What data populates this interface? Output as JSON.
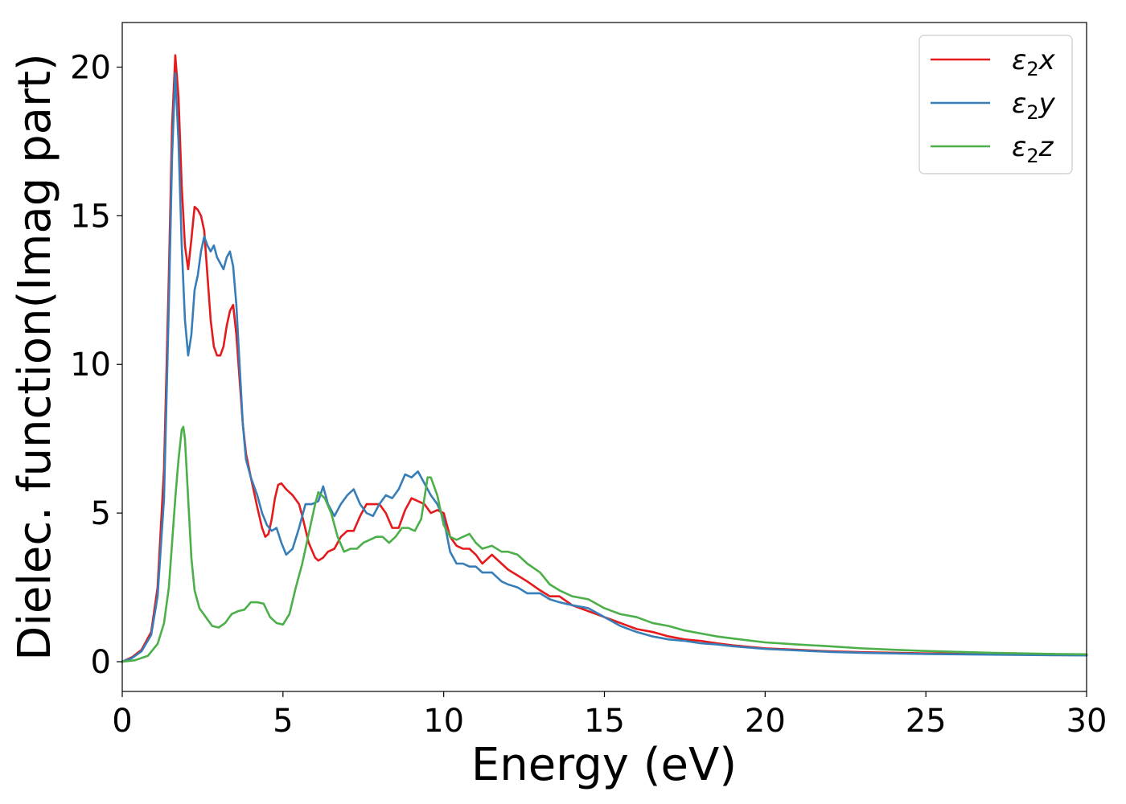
{
  "chart_data": {
    "type": "line",
    "xlabel": "Energy (eV)",
    "ylabel": "Dielec. function(Imag part)",
    "xlim": [
      0,
      30
    ],
    "ylim": [
      -1.0,
      21.5
    ],
    "xticks": [
      0,
      5,
      10,
      15,
      20,
      25,
      30
    ],
    "yticks": [
      0,
      5,
      10,
      15,
      20
    ],
    "xtick_labels": [
      "0",
      "5",
      "10",
      "15",
      "20",
      "25",
      "30"
    ],
    "ytick_labels": [
      "0",
      "5",
      "10",
      "15",
      "20"
    ],
    "grid": false,
    "legend_position": "top-right",
    "series": [
      {
        "name": "ε2x",
        "legend_base": "ε",
        "legend_sub": "2",
        "legend_var": "x",
        "color": "#e41a1c",
        "points": [
          [
            0,
            0
          ],
          [
            0.3,
            0.15
          ],
          [
            0.6,
            0.4
          ],
          [
            0.9,
            1.0
          ],
          [
            1.1,
            2.5
          ],
          [
            1.3,
            6.5
          ],
          [
            1.45,
            13.0
          ],
          [
            1.55,
            18.0
          ],
          [
            1.65,
            20.4
          ],
          [
            1.75,
            19.0
          ],
          [
            1.85,
            16.0
          ],
          [
            1.95,
            14.0
          ],
          [
            2.05,
            13.2
          ],
          [
            2.15,
            14.2
          ],
          [
            2.25,
            15.3
          ],
          [
            2.35,
            15.2
          ],
          [
            2.45,
            15.0
          ],
          [
            2.55,
            14.5
          ],
          [
            2.65,
            13.0
          ],
          [
            2.75,
            11.5
          ],
          [
            2.85,
            10.6
          ],
          [
            2.95,
            10.3
          ],
          [
            3.05,
            10.3
          ],
          [
            3.15,
            10.6
          ],
          [
            3.25,
            11.3
          ],
          [
            3.35,
            11.8
          ],
          [
            3.45,
            12.0
          ],
          [
            3.55,
            11.0
          ],
          [
            3.65,
            9.5
          ],
          [
            3.75,
            8.0
          ],
          [
            3.85,
            7.0
          ],
          [
            4.0,
            6.2
          ],
          [
            4.2,
            5.2
          ],
          [
            4.35,
            4.5
          ],
          [
            4.45,
            4.2
          ],
          [
            4.55,
            4.3
          ],
          [
            4.65,
            4.8
          ],
          [
            4.75,
            5.5
          ],
          [
            4.85,
            5.95
          ],
          [
            4.95,
            6.0
          ],
          [
            5.1,
            5.8
          ],
          [
            5.3,
            5.6
          ],
          [
            5.5,
            5.3
          ],
          [
            5.6,
            4.9
          ],
          [
            5.8,
            4.0
          ],
          [
            6.0,
            3.5
          ],
          [
            6.1,
            3.4
          ],
          [
            6.25,
            3.5
          ],
          [
            6.4,
            3.7
          ],
          [
            6.6,
            3.8
          ],
          [
            6.8,
            4.2
          ],
          [
            7.0,
            4.4
          ],
          [
            7.2,
            4.4
          ],
          [
            7.4,
            4.9
          ],
          [
            7.6,
            5.3
          ],
          [
            7.8,
            5.3
          ],
          [
            8.0,
            5.3
          ],
          [
            8.2,
            5.0
          ],
          [
            8.4,
            4.5
          ],
          [
            8.6,
            4.5
          ],
          [
            8.8,
            5.1
          ],
          [
            9.0,
            5.5
          ],
          [
            9.2,
            5.4
          ],
          [
            9.4,
            5.3
          ],
          [
            9.6,
            5.0
          ],
          [
            9.8,
            5.1
          ],
          [
            10.0,
            5.0
          ],
          [
            10.2,
            4.2
          ],
          [
            10.4,
            3.9
          ],
          [
            10.6,
            3.8
          ],
          [
            10.8,
            3.8
          ],
          [
            11.0,
            3.6
          ],
          [
            11.2,
            3.3
          ],
          [
            11.5,
            3.6
          ],
          [
            11.8,
            3.3
          ],
          [
            12.0,
            3.1
          ],
          [
            12.3,
            2.9
          ],
          [
            12.6,
            2.7
          ],
          [
            13.0,
            2.4
          ],
          [
            13.3,
            2.2
          ],
          [
            13.6,
            2.2
          ],
          [
            14.0,
            1.9
          ],
          [
            14.5,
            1.7
          ],
          [
            15.0,
            1.5
          ],
          [
            15.5,
            1.3
          ],
          [
            16.0,
            1.1
          ],
          [
            16.5,
            1.0
          ],
          [
            17.0,
            0.85
          ],
          [
            17.5,
            0.75
          ],
          [
            18.0,
            0.7
          ],
          [
            18.5,
            0.62
          ],
          [
            19.0,
            0.55
          ],
          [
            20.0,
            0.45
          ],
          [
            21.0,
            0.4
          ],
          [
            22.0,
            0.35
          ],
          [
            23.0,
            0.32
          ],
          [
            24.0,
            0.3
          ],
          [
            25.0,
            0.28
          ],
          [
            26.0,
            0.27
          ],
          [
            27.0,
            0.26
          ],
          [
            28.0,
            0.25
          ],
          [
            29.0,
            0.24
          ],
          [
            30.0,
            0.23
          ]
        ]
      },
      {
        "name": "ε2y",
        "legend_base": "ε",
        "legend_sub": "2",
        "legend_var": "y",
        "color": "#377eb8",
        "points": [
          [
            0,
            0
          ],
          [
            0.3,
            0.12
          ],
          [
            0.6,
            0.35
          ],
          [
            0.9,
            0.9
          ],
          [
            1.1,
            2.2
          ],
          [
            1.3,
            5.5
          ],
          [
            1.45,
            12.0
          ],
          [
            1.55,
            17.0
          ],
          [
            1.65,
            19.8
          ],
          [
            1.75,
            17.5
          ],
          [
            1.85,
            14.0
          ],
          [
            1.95,
            11.5
          ],
          [
            2.05,
            10.3
          ],
          [
            2.15,
            11.0
          ],
          [
            2.25,
            12.5
          ],
          [
            2.35,
            13.0
          ],
          [
            2.45,
            13.8
          ],
          [
            2.55,
            14.3
          ],
          [
            2.65,
            14.0
          ],
          [
            2.75,
            13.8
          ],
          [
            2.85,
            14.0
          ],
          [
            2.95,
            13.6
          ],
          [
            3.05,
            13.4
          ],
          [
            3.15,
            13.2
          ],
          [
            3.25,
            13.6
          ],
          [
            3.35,
            13.8
          ],
          [
            3.45,
            13.3
          ],
          [
            3.55,
            12.0
          ],
          [
            3.65,
            10.0
          ],
          [
            3.75,
            8.0
          ],
          [
            3.85,
            6.8
          ],
          [
            4.0,
            6.2
          ],
          [
            4.2,
            5.6
          ],
          [
            4.35,
            5.0
          ],
          [
            4.5,
            4.6
          ],
          [
            4.65,
            4.4
          ],
          [
            4.8,
            4.5
          ],
          [
            4.95,
            4.0
          ],
          [
            5.1,
            3.6
          ],
          [
            5.3,
            3.8
          ],
          [
            5.5,
            4.5
          ],
          [
            5.7,
            5.3
          ],
          [
            5.9,
            5.3
          ],
          [
            6.1,
            5.4
          ],
          [
            6.25,
            5.9
          ],
          [
            6.4,
            5.3
          ],
          [
            6.6,
            4.9
          ],
          [
            6.8,
            5.3
          ],
          [
            7.0,
            5.6
          ],
          [
            7.2,
            5.8
          ],
          [
            7.4,
            5.3
          ],
          [
            7.6,
            5.0
          ],
          [
            7.8,
            4.9
          ],
          [
            8.0,
            5.3
          ],
          [
            8.2,
            5.6
          ],
          [
            8.4,
            5.5
          ],
          [
            8.6,
            5.8
          ],
          [
            8.8,
            6.3
          ],
          [
            9.0,
            6.2
          ],
          [
            9.2,
            6.4
          ],
          [
            9.4,
            6.0
          ],
          [
            9.6,
            5.6
          ],
          [
            9.8,
            5.3
          ],
          [
            10.0,
            4.8
          ],
          [
            10.2,
            3.7
          ],
          [
            10.4,
            3.3
          ],
          [
            10.6,
            3.3
          ],
          [
            10.8,
            3.2
          ],
          [
            11.0,
            3.2
          ],
          [
            11.2,
            3.0
          ],
          [
            11.5,
            3.0
          ],
          [
            11.8,
            2.7
          ],
          [
            12.0,
            2.6
          ],
          [
            12.3,
            2.5
          ],
          [
            12.6,
            2.3
          ],
          [
            13.0,
            2.3
          ],
          [
            13.3,
            2.1
          ],
          [
            13.6,
            2.0
          ],
          [
            14.0,
            1.9
          ],
          [
            14.5,
            1.8
          ],
          [
            15.0,
            1.5
          ],
          [
            15.5,
            1.2
          ],
          [
            16.0,
            1.0
          ],
          [
            16.5,
            0.85
          ],
          [
            17.0,
            0.75
          ],
          [
            17.5,
            0.7
          ],
          [
            18.0,
            0.62
          ],
          [
            18.5,
            0.58
          ],
          [
            19.0,
            0.52
          ],
          [
            20.0,
            0.43
          ],
          [
            21.0,
            0.38
          ],
          [
            22.0,
            0.33
          ],
          [
            23.0,
            0.3
          ],
          [
            24.0,
            0.28
          ],
          [
            25.0,
            0.26
          ],
          [
            26.0,
            0.25
          ],
          [
            27.0,
            0.24
          ],
          [
            28.0,
            0.23
          ],
          [
            29.0,
            0.22
          ],
          [
            30.0,
            0.21
          ]
        ]
      },
      {
        "name": "ε2z",
        "legend_base": "ε",
        "legend_sub": "2",
        "legend_var": "z",
        "color": "#4daf4a",
        "points": [
          [
            0,
            0
          ],
          [
            0.4,
            0.05
          ],
          [
            0.8,
            0.2
          ],
          [
            1.1,
            0.6
          ],
          [
            1.3,
            1.3
          ],
          [
            1.45,
            2.5
          ],
          [
            1.55,
            4.0
          ],
          [
            1.65,
            5.5
          ],
          [
            1.75,
            6.8
          ],
          [
            1.85,
            7.8
          ],
          [
            1.9,
            7.9
          ],
          [
            1.95,
            7.5
          ],
          [
            2.05,
            5.5
          ],
          [
            2.15,
            3.5
          ],
          [
            2.25,
            2.4
          ],
          [
            2.4,
            1.8
          ],
          [
            2.6,
            1.5
          ],
          [
            2.8,
            1.2
          ],
          [
            3.0,
            1.15
          ],
          [
            3.2,
            1.3
          ],
          [
            3.4,
            1.6
          ],
          [
            3.6,
            1.7
          ],
          [
            3.8,
            1.75
          ],
          [
            4.0,
            2.0
          ],
          [
            4.2,
            2.0
          ],
          [
            4.4,
            1.95
          ],
          [
            4.6,
            1.5
          ],
          [
            4.8,
            1.3
          ],
          [
            5.0,
            1.25
          ],
          [
            5.2,
            1.6
          ],
          [
            5.4,
            2.5
          ],
          [
            5.6,
            3.3
          ],
          [
            5.8,
            4.3
          ],
          [
            6.0,
            5.3
          ],
          [
            6.1,
            5.7
          ],
          [
            6.3,
            5.5
          ],
          [
            6.5,
            5.0
          ],
          [
            6.7,
            4.2
          ],
          [
            6.9,
            3.7
          ],
          [
            7.1,
            3.8
          ],
          [
            7.3,
            3.8
          ],
          [
            7.5,
            4.0
          ],
          [
            7.7,
            4.1
          ],
          [
            7.9,
            4.2
          ],
          [
            8.1,
            4.2
          ],
          [
            8.3,
            4.0
          ],
          [
            8.5,
            4.2
          ],
          [
            8.7,
            4.5
          ],
          [
            8.9,
            4.5
          ],
          [
            9.1,
            4.4
          ],
          [
            9.3,
            4.8
          ],
          [
            9.5,
            6.2
          ],
          [
            9.6,
            6.2
          ],
          [
            9.8,
            5.6
          ],
          [
            10.0,
            4.6
          ],
          [
            10.2,
            4.2
          ],
          [
            10.4,
            4.1
          ],
          [
            10.6,
            4.2
          ],
          [
            10.8,
            4.3
          ],
          [
            11.0,
            4.0
          ],
          [
            11.2,
            3.8
          ],
          [
            11.5,
            3.9
          ],
          [
            11.8,
            3.7
          ],
          [
            12.0,
            3.7
          ],
          [
            12.3,
            3.6
          ],
          [
            12.6,
            3.3
          ],
          [
            13.0,
            3.0
          ],
          [
            13.3,
            2.6
          ],
          [
            13.6,
            2.4
          ],
          [
            14.0,
            2.2
          ],
          [
            14.5,
            2.1
          ],
          [
            15.0,
            1.8
          ],
          [
            15.5,
            1.6
          ],
          [
            16.0,
            1.5
          ],
          [
            16.5,
            1.3
          ],
          [
            17.0,
            1.2
          ],
          [
            17.5,
            1.05
          ],
          [
            18.0,
            0.95
          ],
          [
            18.5,
            0.85
          ],
          [
            19.0,
            0.78
          ],
          [
            20.0,
            0.65
          ],
          [
            21.0,
            0.58
          ],
          [
            22.0,
            0.52
          ],
          [
            23.0,
            0.45
          ],
          [
            24.0,
            0.4
          ],
          [
            25.0,
            0.36
          ],
          [
            26.0,
            0.33
          ],
          [
            27.0,
            0.3
          ],
          [
            28.0,
            0.28
          ],
          [
            29.0,
            0.26
          ],
          [
            30.0,
            0.25
          ]
        ]
      }
    ]
  }
}
